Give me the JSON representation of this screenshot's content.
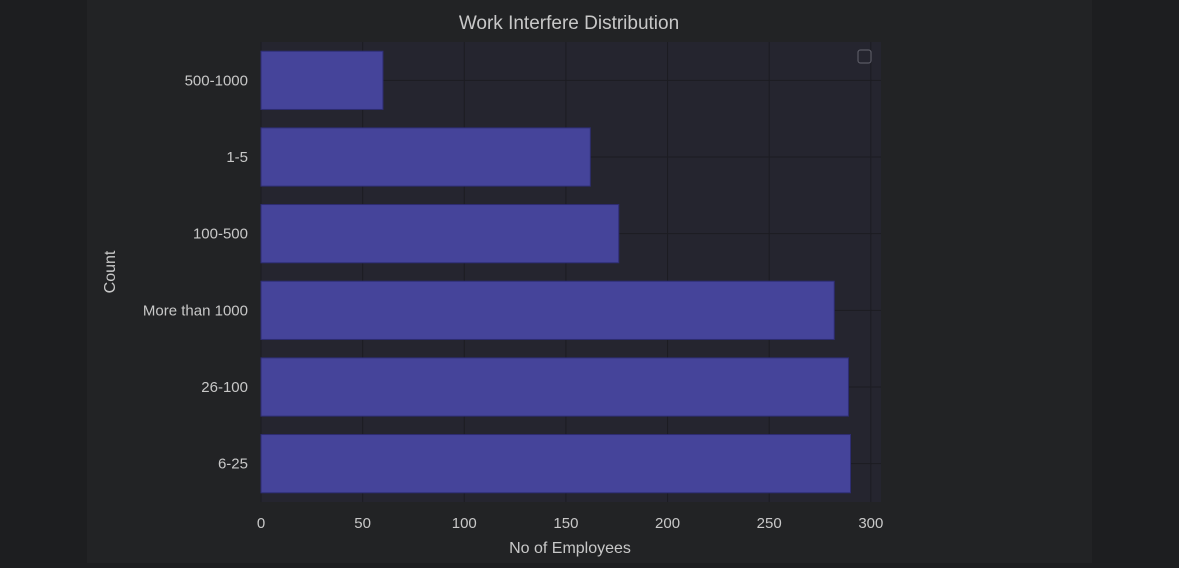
{
  "chart_data": {
    "type": "bar",
    "orientation": "horizontal",
    "title": "Work Interfere Distribution",
    "xlabel": "No of Employees",
    "ylabel": "Count",
    "categories": [
      "500-1000",
      "1-5",
      "100-500",
      "More than 1000",
      "26-100",
      "6-25"
    ],
    "values": [
      60,
      162,
      176,
      282,
      289,
      290
    ],
    "xlim": [
      0,
      305
    ],
    "xticks": [
      "0",
      "50",
      "100",
      "150",
      "200",
      "250",
      "300"
    ],
    "grid": true,
    "legend": "top-right (empty)",
    "colors": {
      "bar_fill": "#45449a",
      "bar_edge": "#2e2d72",
      "plot_bg": "#25252f",
      "figure_bg": "#222325",
      "page_bg": "#1d1e20",
      "text": "#c8c8c8",
      "grid": "#1c1c22"
    }
  }
}
